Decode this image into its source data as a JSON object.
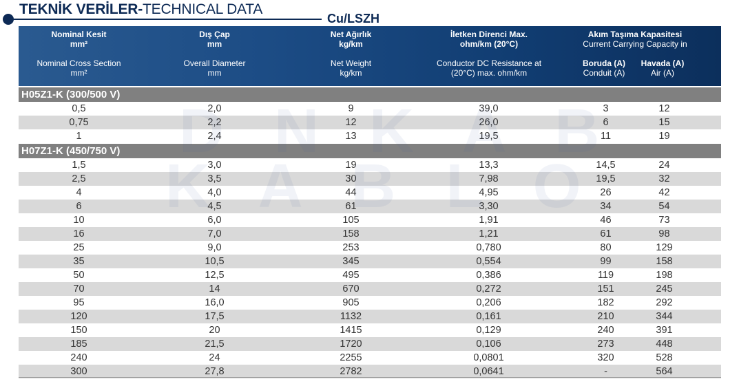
{
  "title": {
    "bold": "TEKNİK VERİLER-",
    "light": "TECHNICAL DATA"
  },
  "subtitle": "Cu/LSZH",
  "header": {
    "col1": {
      "tr": "Nominal Kesit",
      "tr_unit": "mm²",
      "en": "Nominal Cross Section",
      "en_unit": "mm²"
    },
    "col2": {
      "tr": "Dış Çap",
      "tr_unit": "mm",
      "en": "Overall Diameter",
      "en_unit": "mm"
    },
    "col3": {
      "tr": "Net Ağırlık",
      "tr_unit": "kg/km",
      "en": "Net Weight",
      "en_unit": "kg/km"
    },
    "col4": {
      "tr": "İletken Direnci Max.",
      "tr_unit": "ohm/km (20°C)",
      "en": "Conductor DC Resistance at",
      "en_unit": "(20°C) max. ohm/km"
    },
    "col5": {
      "tr": "Akım Taşıma Kapasitesi",
      "en": "Current Carrying Capacity in",
      "sub1": {
        "tr": "Boruda (A)",
        "en": "Conduit (A)"
      },
      "sub2": {
        "tr": "Havada (A)",
        "en": "Air (A)"
      }
    }
  },
  "watermark": {
    "line1": "D N K A B",
    "line2": "K A B L O"
  },
  "sections": [
    {
      "title": "H05Z1-K (300/500 V)",
      "rows": [
        [
          "0,5",
          "2,0",
          "9",
          "39,0",
          "3",
          "12"
        ],
        [
          "0,75",
          "2,2",
          "12",
          "26,0",
          "6",
          "15"
        ],
        [
          "1",
          "2,4",
          "13",
          "19,5",
          "11",
          "19"
        ]
      ]
    },
    {
      "title": "H07Z1-K (450/750 V)",
      "rows": [
        [
          "1,5",
          "3,0",
          "19",
          "13,3",
          "14,5",
          "24"
        ],
        [
          "2,5",
          "3,5",
          "30",
          "7,98",
          "19,5",
          "32"
        ],
        [
          "4",
          "4,0",
          "44",
          "4,95",
          "26",
          "42"
        ],
        [
          "6",
          "4,5",
          "61",
          "3,30",
          "34",
          "54"
        ],
        [
          "10",
          "6,0",
          "105",
          "1,91",
          "46",
          "73"
        ],
        [
          "16",
          "7,0",
          "158",
          "1,21",
          "61",
          "98"
        ],
        [
          "25",
          "9,0",
          "253",
          "0,780",
          "80",
          "129"
        ],
        [
          "35",
          "10,5",
          "345",
          "0,554",
          "99",
          "158"
        ],
        [
          "50",
          "12,5",
          "495",
          "0,386",
          "119",
          "198"
        ],
        [
          "70",
          "14",
          "670",
          "0,272",
          "151",
          "245"
        ],
        [
          "95",
          "16,0",
          "905",
          "0,206",
          "182",
          "292"
        ],
        [
          "120",
          "17,5",
          "1132",
          "0,161",
          "210",
          "344"
        ],
        [
          "150",
          "20",
          "1415",
          "0,129",
          "240",
          "391"
        ],
        [
          "185",
          "21,5",
          "1720",
          "0,106",
          "273",
          "448"
        ],
        [
          "240",
          "24",
          "2255",
          "0,0801",
          "320",
          "528"
        ],
        [
          "300",
          "27,8",
          "2782",
          "0,0641",
          "-",
          "564"
        ]
      ]
    }
  ]
}
